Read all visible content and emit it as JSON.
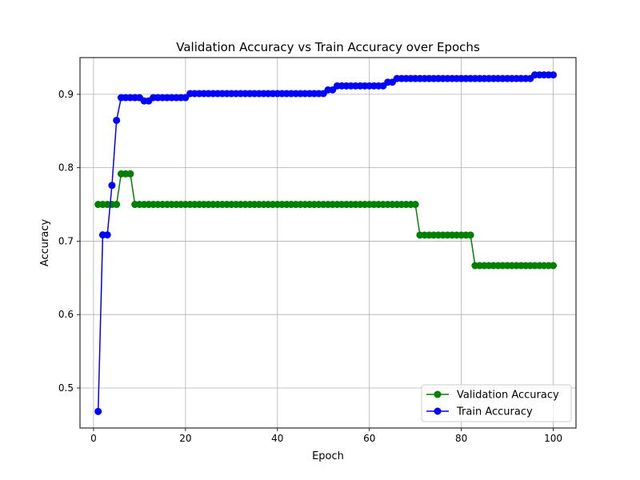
{
  "chart_data": {
    "type": "line",
    "title": "Validation Accuracy vs Train Accuracy over Epochs",
    "xlabel": "Epoch",
    "ylabel": "Accuracy",
    "xlim": [
      -2.95,
      104.95
    ],
    "ylim": [
      0.4455,
      0.95
    ],
    "xticks": [
      0,
      20,
      40,
      60,
      80,
      100
    ],
    "yticks": [
      0.5,
      0.6,
      0.7,
      0.8,
      0.9
    ],
    "grid": true,
    "legend_position": "lower-right",
    "x": [
      1,
      2,
      3,
      4,
      5,
      6,
      7,
      8,
      9,
      10,
      11,
      12,
      13,
      14,
      15,
      16,
      17,
      18,
      19,
      20,
      21,
      22,
      23,
      24,
      25,
      26,
      27,
      28,
      29,
      30,
      31,
      32,
      33,
      34,
      35,
      36,
      37,
      38,
      39,
      40,
      41,
      42,
      43,
      44,
      45,
      46,
      47,
      48,
      49,
      50,
      51,
      52,
      53,
      54,
      55,
      56,
      57,
      58,
      59,
      60,
      61,
      62,
      63,
      64,
      65,
      66,
      67,
      68,
      69,
      70,
      71,
      72,
      73,
      74,
      75,
      76,
      77,
      78,
      79,
      80,
      81,
      82,
      83,
      84,
      85,
      86,
      87,
      88,
      89,
      90,
      91,
      92,
      93,
      94,
      95,
      96,
      97,
      98,
      99,
      100
    ],
    "series": [
      {
        "name": "Validation Accuracy",
        "color": "#008000",
        "marker": "circle",
        "values": [
          0.75,
          0.75,
          0.75,
          0.75,
          0.75,
          0.7917,
          0.7917,
          0.7917,
          0.75,
          0.75,
          0.75,
          0.75,
          0.75,
          0.75,
          0.75,
          0.75,
          0.75,
          0.75,
          0.75,
          0.75,
          0.75,
          0.75,
          0.75,
          0.75,
          0.75,
          0.75,
          0.75,
          0.75,
          0.75,
          0.75,
          0.75,
          0.75,
          0.75,
          0.75,
          0.75,
          0.75,
          0.75,
          0.75,
          0.75,
          0.75,
          0.75,
          0.75,
          0.75,
          0.75,
          0.75,
          0.75,
          0.75,
          0.75,
          0.75,
          0.75,
          0.75,
          0.75,
          0.75,
          0.75,
          0.75,
          0.75,
          0.75,
          0.75,
          0.75,
          0.75,
          0.75,
          0.75,
          0.75,
          0.75,
          0.75,
          0.75,
          0.75,
          0.75,
          0.75,
          0.75,
          0.7083,
          0.7083,
          0.7083,
          0.7083,
          0.7083,
          0.7083,
          0.7083,
          0.7083,
          0.7083,
          0.7083,
          0.7083,
          0.7083,
          0.6667,
          0.6667,
          0.6667,
          0.6667,
          0.6667,
          0.6667,
          0.6667,
          0.6667,
          0.6667,
          0.6667,
          0.6667,
          0.6667,
          0.6667,
          0.6667,
          0.6667,
          0.6667,
          0.6667,
          0.6667
        ]
      },
      {
        "name": "Train Accuracy",
        "color": "#0000ff",
        "marker": "circle",
        "values": [
          0.468,
          0.7085,
          0.7085,
          0.776,
          0.8645,
          0.8955,
          0.8955,
          0.8955,
          0.8955,
          0.8955,
          0.891,
          0.891,
          0.8955,
          0.8955,
          0.8955,
          0.8955,
          0.8955,
          0.8955,
          0.8955,
          0.8955,
          0.901,
          0.901,
          0.901,
          0.901,
          0.901,
          0.901,
          0.901,
          0.901,
          0.901,
          0.901,
          0.901,
          0.901,
          0.901,
          0.901,
          0.901,
          0.901,
          0.901,
          0.901,
          0.901,
          0.901,
          0.901,
          0.901,
          0.901,
          0.901,
          0.901,
          0.901,
          0.901,
          0.901,
          0.901,
          0.901,
          0.906,
          0.906,
          0.9115,
          0.9115,
          0.9115,
          0.9115,
          0.9115,
          0.9115,
          0.9115,
          0.9115,
          0.9115,
          0.9115,
          0.9115,
          0.9165,
          0.9165,
          0.9215,
          0.9215,
          0.9215,
          0.9215,
          0.9215,
          0.9215,
          0.9215,
          0.9215,
          0.9215,
          0.9215,
          0.9215,
          0.9215,
          0.9215,
          0.9215,
          0.9215,
          0.9215,
          0.9215,
          0.9215,
          0.9215,
          0.9215,
          0.9215,
          0.9215,
          0.9215,
          0.9215,
          0.9215,
          0.9215,
          0.9215,
          0.9215,
          0.9215,
          0.9215,
          0.9265,
          0.9265,
          0.9265,
          0.9265,
          0.9265
        ]
      }
    ]
  }
}
